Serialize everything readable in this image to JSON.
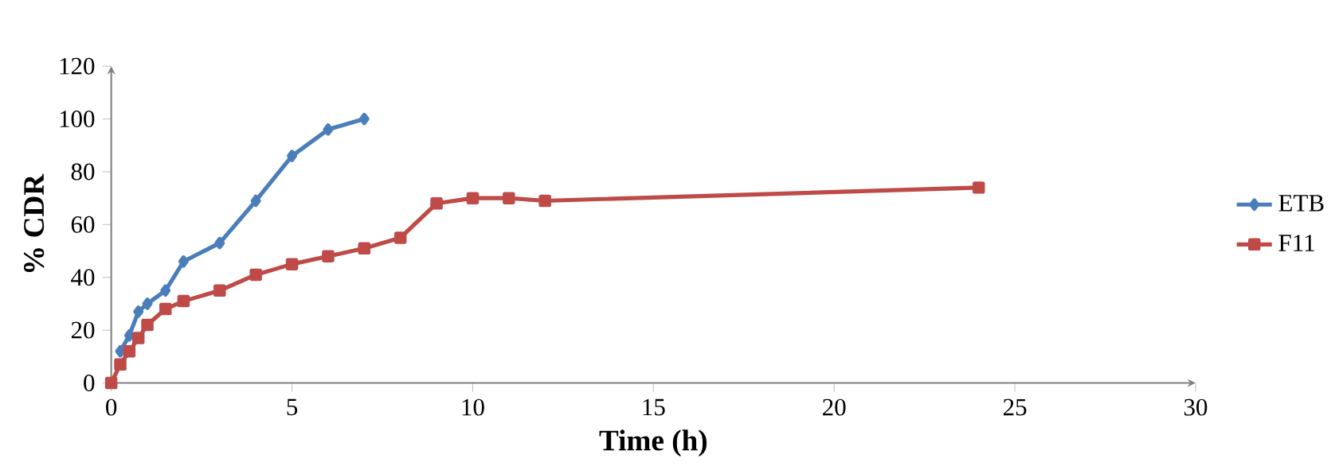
{
  "chart_data": {
    "type": "line",
    "xlabel": "Time (h)",
    "ylabel": "% CDR",
    "xlim": [
      0,
      30
    ],
    "xticks": [
      0,
      5,
      10,
      15,
      20,
      25,
      30
    ],
    "ylim": [
      0,
      120
    ],
    "yticks": [
      0,
      20,
      40,
      60,
      80,
      100,
      120
    ],
    "grid": false,
    "legend": "right",
    "series": [
      {
        "name": "ETB",
        "color": "#4a7ebb",
        "marker": "diamond",
        "x": [
          0.25,
          0.5,
          0.75,
          1,
          1.5,
          2,
          3,
          4,
          5,
          6,
          7
        ],
        "values": [
          12,
          18,
          27,
          30,
          35,
          46,
          53,
          69,
          86,
          96,
          100
        ]
      },
      {
        "name": "F11",
        "color": "#be4b48",
        "marker": "square",
        "x": [
          0,
          0.25,
          0.5,
          0.75,
          1,
          1.5,
          2,
          3,
          4,
          5,
          6,
          7,
          8,
          9,
          10,
          11,
          12,
          24
        ],
        "values": [
          0,
          7,
          12,
          17,
          22,
          28,
          31,
          35,
          41,
          45,
          48,
          51,
          55,
          68,
          70,
          70,
          69,
          74
        ]
      }
    ]
  }
}
